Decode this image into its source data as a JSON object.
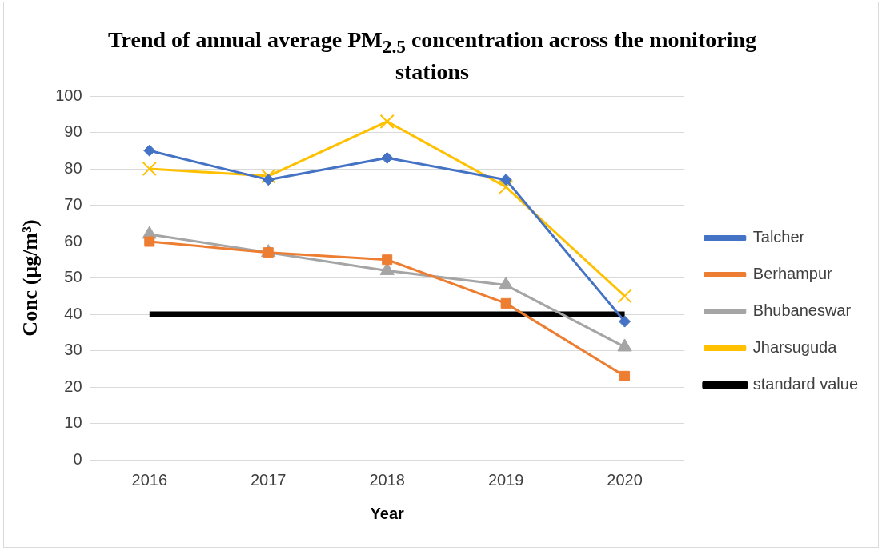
{
  "chart_data": {
    "type": "line",
    "title": "Trend of annual average PM$_{2.5}$ concentration across the monitoring stations",
    "xlabel": "Year",
    "ylabel": "Conc (µg/m³)",
    "categories": [
      "2016",
      "2017",
      "2018",
      "2019",
      "2020"
    ],
    "series": [
      {
        "name": "Talcher",
        "color": "#4472c4",
        "marker": "diamond",
        "values": [
          85,
          77,
          83,
          77,
          38
        ]
      },
      {
        "name": "Berhampur",
        "color": "#ed7d31",
        "marker": "square",
        "values": [
          60,
          57,
          55,
          43,
          23
        ]
      },
      {
        "name": "Bhubaneswar",
        "color": "#a5a5a5",
        "marker": "triangle",
        "values": [
          62,
          57,
          52,
          48,
          31
        ]
      },
      {
        "name": "Jharsuguda",
        "color": "#ffc000",
        "marker": "cross",
        "values": [
          80,
          78,
          93,
          75,
          45
        ]
      },
      {
        "name": "standard value",
        "color": "#000000",
        "marker": "none",
        "values": [
          40,
          40,
          40,
          40,
          40
        ]
      }
    ],
    "ylim": [
      0,
      100
    ],
    "yticks": [
      0,
      10,
      20,
      30,
      40,
      50,
      60,
      70,
      80,
      90,
      100
    ],
    "grid": "y",
    "legend": "right"
  }
}
